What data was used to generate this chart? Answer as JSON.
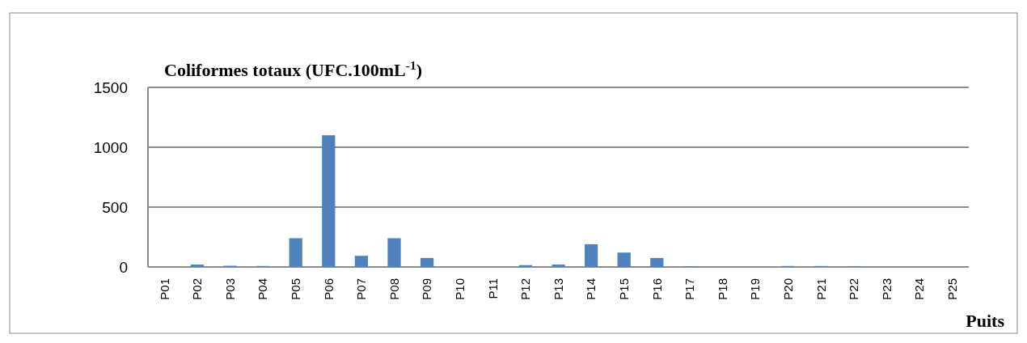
{
  "chart_data": {
    "type": "bar",
    "title": "Coliformes totaux (UFC.100mL$^{-1}$)",
    "xlabel": "Puits",
    "categories": [
      "P01",
      "P02",
      "P03",
      "P04",
      "P05",
      "P06",
      "P07",
      "P08",
      "P09",
      "P10",
      "P11",
      "P12",
      "P13",
      "P14",
      "P15",
      "P16",
      "P17",
      "P18",
      "P19",
      "P20",
      "P21",
      "P22",
      "P23",
      "P24",
      "P25"
    ],
    "values": [
      0,
      20,
      10,
      8,
      240,
      1100,
      93,
      240,
      75,
      0,
      0,
      15,
      20,
      190,
      120,
      75,
      5,
      0,
      0,
      8,
      8,
      5,
      0,
      0,
      0
    ],
    "color": "#4f81bd",
    "ylim": [
      0,
      1500
    ],
    "yticks": [
      0,
      500,
      1000,
      1500
    ],
    "grid": "y"
  }
}
